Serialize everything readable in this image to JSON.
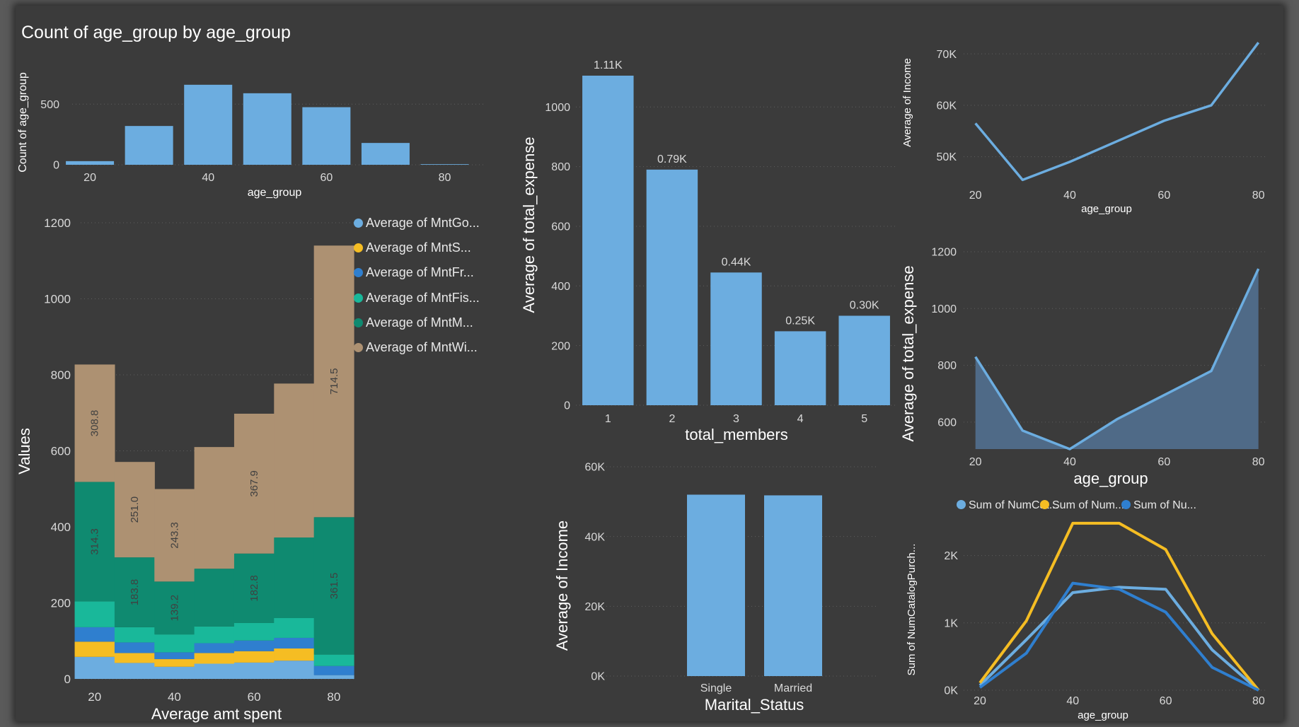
{
  "colors": {
    "bar": "#6cade0",
    "axis_text": "#d9d9d9",
    "title_text": "#ffffff",
    "grid": "#5e5e5e",
    "yellow": "#f5bd23",
    "blue_dark": "#2f7fcf",
    "teal": "#19b89a",
    "green_dark": "#0f8a70",
    "tan": "#ad9172",
    "label_dark": "#404040"
  },
  "chart_data": [
    {
      "id": "age-count",
      "type": "bar",
      "title": "Count of age_group by age_group",
      "xlabel": "age_group",
      "ylabel": "Count of age_group",
      "x": [
        20,
        30,
        40,
        50,
        60,
        70,
        80
      ],
      "values": [
        30,
        320,
        660,
        590,
        475,
        180,
        5
      ],
      "xticks": [
        20,
        40,
        60,
        80
      ],
      "yticks": [
        0,
        500
      ],
      "ylim": [
        0,
        700
      ],
      "grid": true
    },
    {
      "id": "spend-stacked",
      "type": "bar",
      "stacked": true,
      "title": "",
      "xlabel": "Average amt spent",
      "ylabel": "Values",
      "x": [
        20,
        30,
        40,
        50,
        60,
        70,
        80
      ],
      "xticks": [
        20,
        40,
        60,
        80
      ],
      "yticks": [
        0,
        200,
        400,
        600,
        800,
        1000,
        1200
      ],
      "ylim": [
        0,
        1200
      ],
      "legend_position": "top-right",
      "series": [
        {
          "name": "Average of MntGo...",
          "color": "#6cade0",
          "values": [
            58,
            42,
            32,
            40,
            43,
            48,
            10
          ]
        },
        {
          "name": "Average of MntS...",
          "color": "#f5bd23",
          "values": [
            40,
            26,
            20,
            28,
            30,
            32,
            0
          ]
        },
        {
          "name": "Average of MntFr...",
          "color": "#2f7fcf",
          "values": [
            38,
            28,
            18,
            26,
            28,
            28,
            24
          ]
        },
        {
          "name": "Average of MntFis...",
          "color": "#19b89a",
          "values": [
            68,
            40,
            47,
            44,
            46,
            52,
            30
          ]
        },
        {
          "name": "Average of MntM...",
          "color": "#0f8a70",
          "values": [
            314.3,
            183.8,
            139.2,
            152,
            182.8,
            212,
            361.5
          ]
        },
        {
          "name": "Average of MntWi...",
          "color": "#ad9172",
          "values": [
            308.8,
            251.0,
            243.3,
            320,
            367.9,
            405,
            714.5
          ]
        }
      ],
      "data_labels": [
        {
          "series": 4,
          "index": 0,
          "text": "314.3"
        },
        {
          "series": 4,
          "index": 1,
          "text": "183.8"
        },
        {
          "series": 4,
          "index": 2,
          "text": "139.2"
        },
        {
          "series": 4,
          "index": 4,
          "text": "182.8"
        },
        {
          "series": 4,
          "index": 6,
          "text": "361.5"
        },
        {
          "series": 5,
          "index": 0,
          "text": "308.8"
        },
        {
          "series": 5,
          "index": 1,
          "text": "251.0"
        },
        {
          "series": 5,
          "index": 2,
          "text": "243.3"
        },
        {
          "series": 5,
          "index": 4,
          "text": "367.9"
        },
        {
          "series": 5,
          "index": 6,
          "text": "714.5"
        }
      ]
    },
    {
      "id": "members-expense",
      "type": "bar",
      "title": "",
      "xlabel": "total_members",
      "ylabel": "Average of total_expense",
      "categories": [
        "1",
        "2",
        "3",
        "4",
        "5"
      ],
      "values": [
        1105,
        790,
        445,
        248,
        300
      ],
      "data_labels": [
        "1.11K",
        "0.79K",
        "0.44K",
        "0.25K",
        "0.30K"
      ],
      "yticks": [
        0,
        200,
        400,
        600,
        800,
        1000
      ],
      "ylim": [
        0,
        1150
      ],
      "grid": true
    },
    {
      "id": "marital-income",
      "type": "bar",
      "title": "",
      "xlabel": "Marital_Status",
      "ylabel": "Average of Income",
      "categories": [
        "Single",
        "Married"
      ],
      "values": [
        52000,
        51800
      ],
      "yticks": [
        0,
        20000,
        40000,
        60000
      ],
      "ytick_labels": [
        "0K",
        "20K",
        "40K",
        "60K"
      ],
      "ylim": [
        0,
        60000
      ],
      "grid": true
    },
    {
      "id": "age-income",
      "type": "line",
      "title": "",
      "xlabel": "age_group",
      "ylabel": "Average of Income",
      "x": [
        20,
        30,
        40,
        50,
        60,
        70,
        80
      ],
      "values": [
        56500,
        45500,
        49000,
        53000,
        57000,
        60000,
        72200
      ],
      "xticks": [
        20,
        40,
        60,
        80
      ],
      "yticks": [
        50000,
        60000,
        70000
      ],
      "ytick_labels": [
        "50K",
        "60K",
        "70K"
      ],
      "ylim": [
        45000,
        72500
      ],
      "grid": true
    },
    {
      "id": "age-expense",
      "type": "area",
      "title": "",
      "xlabel": "age_group",
      "ylabel": "Average of total_expense",
      "x": [
        20,
        30,
        40,
        50,
        60,
        70,
        80
      ],
      "values": [
        830,
        570,
        505,
        610,
        695,
        780,
        1140
      ],
      "xticks": [
        20,
        40,
        60,
        80
      ],
      "yticks": [
        600,
        800,
        1000,
        1200
      ],
      "ylim": [
        505,
        1200
      ],
      "grid": true
    },
    {
      "id": "age-purchases",
      "type": "line",
      "title": "",
      "xlabel": "age_group",
      "ylabel": "Sum of NumCatalogPurch...",
      "x": [
        20,
        30,
        40,
        50,
        60,
        70,
        80
      ],
      "xticks": [
        20,
        40,
        60,
        80
      ],
      "yticks": [
        0,
        1000,
        2000
      ],
      "ytick_labels": [
        "0K",
        "1K",
        "2K"
      ],
      "ylim": [
        0,
        2500
      ],
      "legend_position": "top",
      "grid": true,
      "series": [
        {
          "name": "Sum of NumCat...",
          "color": "#6cade0",
          "values": [
            70,
            750,
            1450,
            1530,
            1500,
            600,
            0
          ]
        },
        {
          "name": "Sum of Num...",
          "color": "#f5bd23",
          "values": [
            110,
            1030,
            2480,
            2480,
            2090,
            840,
            0
          ]
        },
        {
          "name": "Sum of Nu...",
          "color": "#2f7fcf",
          "values": [
            40,
            550,
            1590,
            1500,
            1160,
            340,
            0
          ]
        }
      ]
    }
  ]
}
